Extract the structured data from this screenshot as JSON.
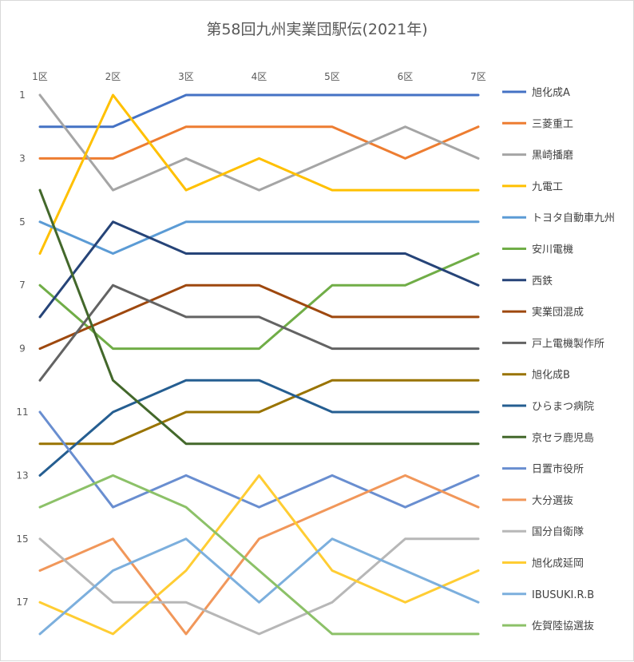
{
  "chart_data": {
    "type": "line",
    "title": "第58回九州実業団駅伝(2021年)",
    "xlabel": "",
    "ylabel": "",
    "categories": [
      "1区",
      "2区",
      "3区",
      "4区",
      "5区",
      "6区",
      "7区"
    ],
    "y_ticks": [
      1,
      3,
      5,
      7,
      9,
      11,
      13,
      15,
      17
    ],
    "ylim": [
      1,
      18
    ],
    "y_reversed": true,
    "grid": false,
    "legend_position": "right",
    "series": [
      {
        "name": "旭化成A",
        "color": "#4472C4",
        "values": [
          2,
          2,
          1,
          1,
          1,
          1,
          1
        ]
      },
      {
        "name": "三菱重工",
        "color": "#ED7D31",
        "values": [
          3,
          3,
          2,
          2,
          2,
          3,
          2
        ]
      },
      {
        "name": "黒崎播磨",
        "color": "#A5A5A5",
        "values": [
          1,
          4,
          3,
          4,
          3,
          2,
          3
        ]
      },
      {
        "name": "九電工",
        "color": "#FFC000",
        "values": [
          6,
          1,
          4,
          3,
          4,
          4,
          4
        ]
      },
      {
        "name": "トヨタ自動車九州",
        "color": "#5B9BD5",
        "values": [
          5,
          6,
          5,
          5,
          5,
          5,
          5
        ]
      },
      {
        "name": "安川電機",
        "color": "#70AD47",
        "values": [
          7,
          9,
          9,
          9,
          7,
          7,
          6
        ]
      },
      {
        "name": "西鉄",
        "color": "#264478",
        "values": [
          8,
          5,
          6,
          6,
          6,
          6,
          7
        ]
      },
      {
        "name": "実業団混成",
        "color": "#9E480E",
        "values": [
          9,
          8,
          7,
          7,
          8,
          8,
          8
        ]
      },
      {
        "name": "戸上電機製作所",
        "color": "#636363",
        "values": [
          10,
          7,
          8,
          8,
          9,
          9,
          9
        ]
      },
      {
        "name": "旭化成B",
        "color": "#997300",
        "values": [
          12,
          12,
          11,
          11,
          10,
          10,
          10
        ]
      },
      {
        "name": "ひらまつ病院",
        "color": "#255E91",
        "values": [
          13,
          11,
          10,
          10,
          11,
          11,
          11
        ]
      },
      {
        "name": "京セラ鹿児島",
        "color": "#43682B",
        "values": [
          4,
          10,
          12,
          12,
          12,
          12,
          12
        ]
      },
      {
        "name": "日置市役所",
        "color": "#698ED0",
        "values": [
          11,
          14,
          13,
          14,
          13,
          14,
          13
        ]
      },
      {
        "name": "大分選抜",
        "color": "#F1975A",
        "values": [
          16,
          15,
          18,
          15,
          14,
          13,
          14
        ]
      },
      {
        "name": "国分自衛隊",
        "color": "#B7B7B7",
        "values": [
          15,
          17,
          17,
          18,
          17,
          15,
          15
        ]
      },
      {
        "name": "旭化成延岡",
        "color": "#FFCD33",
        "values": [
          17,
          18,
          16,
          13,
          16,
          17,
          16
        ]
      },
      {
        "name": "IBUSUKI.R.B",
        "color": "#7CAFDD",
        "values": [
          18,
          16,
          15,
          17,
          15,
          16,
          17
        ]
      },
      {
        "name": "佐賀陸協選抜",
        "color": "#8CC168",
        "values": [
          14,
          13,
          14,
          16,
          18,
          18,
          18
        ]
      }
    ]
  }
}
